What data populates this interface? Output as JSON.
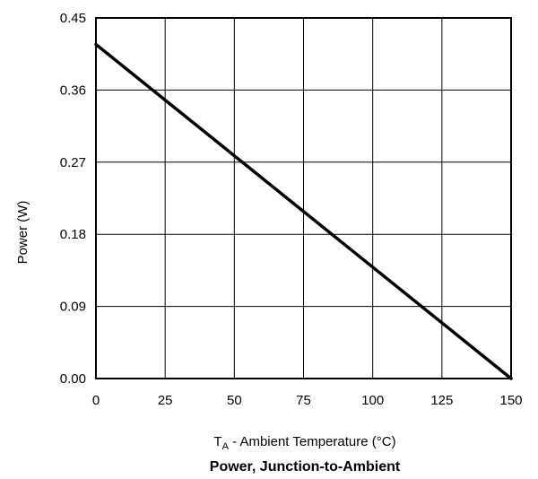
{
  "chart_data": {
    "type": "line",
    "title": "Power, Junction-to-Ambient",
    "xlabel_main": "T",
    "xlabel_sub": "A",
    "xlabel_rest": " - Ambient Temperature (°C)",
    "ylabel": "Power (W)",
    "xlim": [
      0,
      150
    ],
    "ylim": [
      0,
      0.45
    ],
    "x_ticks": [
      "0",
      "25",
      "50",
      "75",
      "100",
      "125",
      "150"
    ],
    "y_ticks": [
      "0.00",
      "0.09",
      "0.18",
      "0.27",
      "0.36",
      "0.45"
    ],
    "grid": true,
    "series": [
      {
        "x": [
          0,
          150
        ],
        "y": [
          0.417,
          0.0
        ]
      }
    ],
    "colors": {
      "line": "#000000",
      "grid": "#000000",
      "frame": "#000000"
    }
  }
}
